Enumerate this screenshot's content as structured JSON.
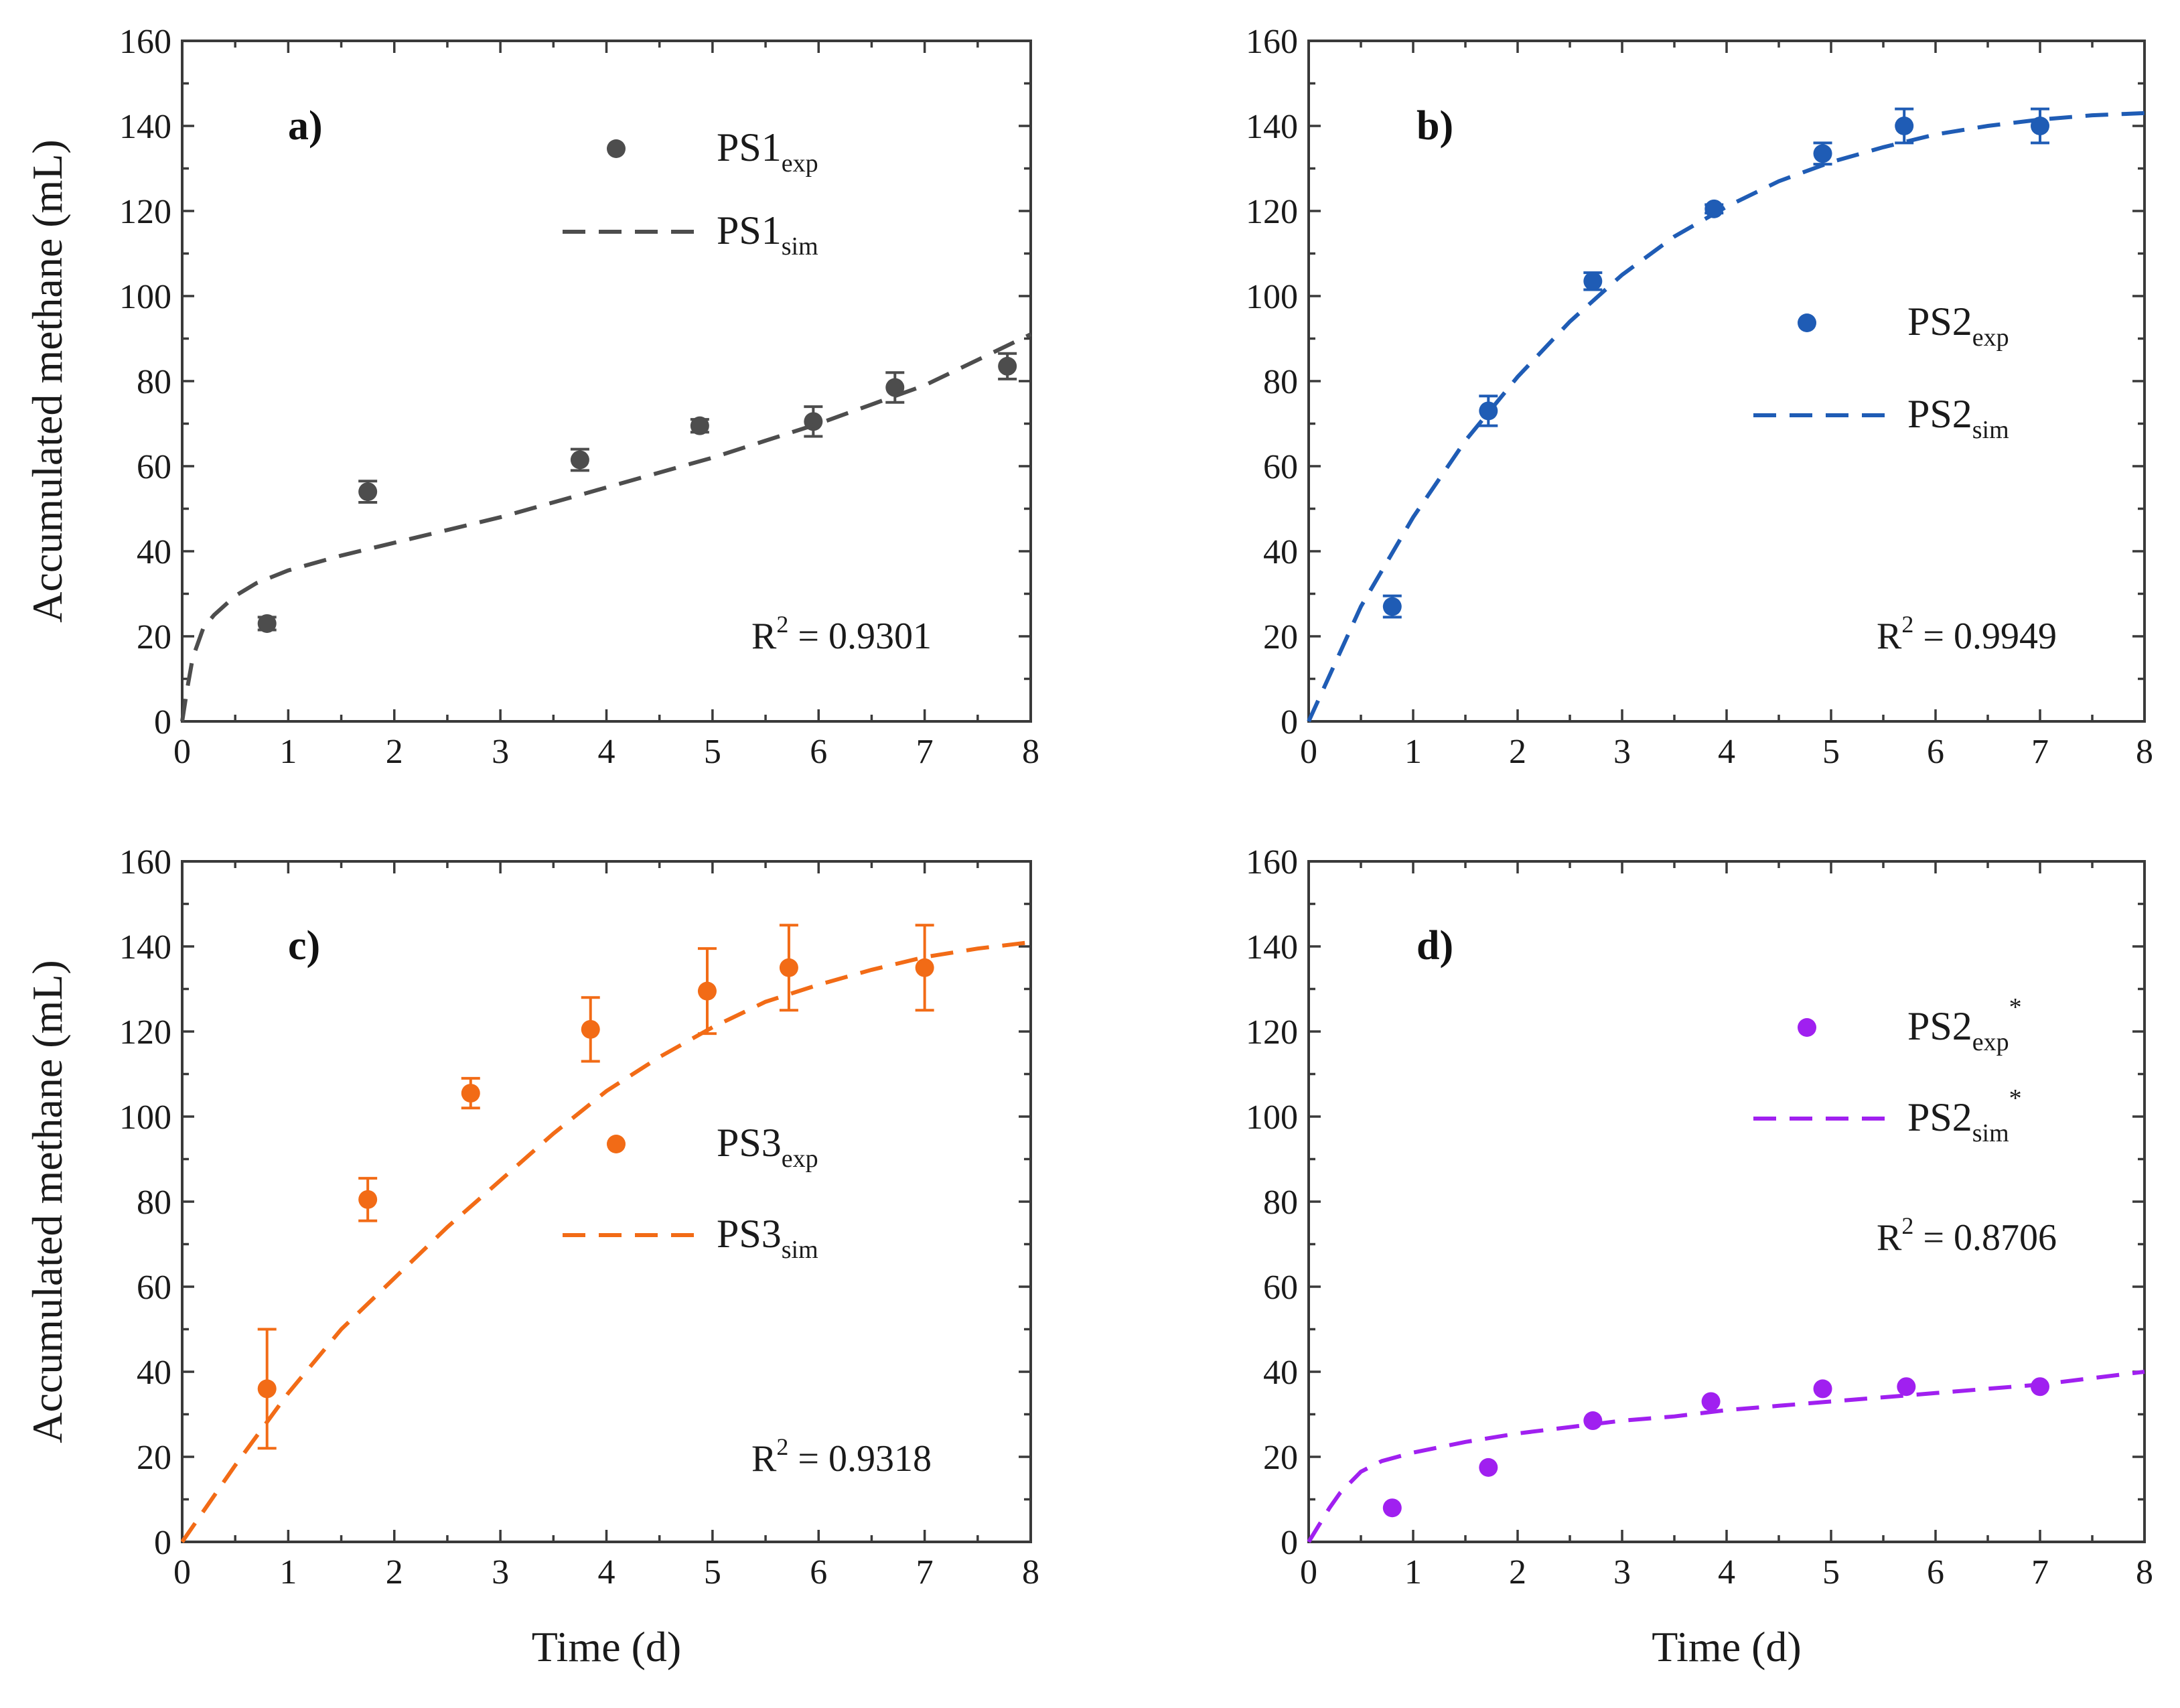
{
  "chart_data": [
    {
      "type": "scatter",
      "panel": "a)",
      "color": "#4d4d4d",
      "xlabel": "",
      "ylabel": "Accumulated methane (mL)",
      "xlim": [
        0,
        8
      ],
      "ylim": [
        0,
        160
      ],
      "xticks": [
        0,
        1,
        2,
        3,
        4,
        5,
        6,
        7,
        8
      ],
      "yticks": [
        0,
        20,
        40,
        60,
        80,
        100,
        120,
        140,
        160
      ],
      "r2_label": "R",
      "r2_sup": "2",
      "r2_value": " = 0.9301",
      "legend": [
        {
          "kind": "marker",
          "base": "PS1",
          "sub": "exp",
          "sup": ""
        },
        {
          "kind": "line",
          "base": "PS1",
          "sub": "sim",
          "sup": ""
        }
      ],
      "series": [
        {
          "name": "PS1exp",
          "kind": "scatter",
          "x": [
            0.8,
            1.75,
            3.75,
            4.88,
            5.95,
            6.72,
            7.78
          ],
          "y": [
            23,
            54,
            61.5,
            69.5,
            70.5,
            78.5,
            83.5
          ],
          "err": [
            1.5,
            2.5,
            2.5,
            1.5,
            3.5,
            3.5,
            3
          ]
        },
        {
          "name": "PS1sim",
          "kind": "line",
          "x": [
            0,
            0.05,
            0.1,
            0.2,
            0.3,
            0.5,
            0.7,
            1,
            1.5,
            2,
            2.5,
            3,
            3.5,
            4,
            4.5,
            5,
            5.5,
            6,
            6.5,
            7,
            7.5,
            8
          ],
          "y": [
            0,
            8,
            15,
            22,
            25,
            29.5,
            32.5,
            35.5,
            39,
            42,
            45,
            48,
            51.5,
            55,
            58.5,
            62,
            66,
            70,
            74.5,
            79,
            85,
            91
          ]
        }
      ]
    },
    {
      "type": "scatter",
      "panel": "b)",
      "color": "#1f5cb5",
      "xlabel": "",
      "ylabel": "",
      "xlim": [
        0,
        8
      ],
      "ylim": [
        0,
        160
      ],
      "xticks": [
        0,
        1,
        2,
        3,
        4,
        5,
        6,
        7,
        8
      ],
      "yticks": [
        0,
        20,
        40,
        60,
        80,
        100,
        120,
        140,
        160
      ],
      "r2_label": "R",
      "r2_sup": "2",
      "r2_value": " = 0.9949",
      "legend": [
        {
          "kind": "marker",
          "base": "PS2",
          "sub": "exp",
          "sup": ""
        },
        {
          "kind": "line",
          "base": "PS2",
          "sub": "sim",
          "sup": ""
        }
      ],
      "series": [
        {
          "name": "PS2exp",
          "kind": "scatter",
          "x": [
            0.8,
            1.72,
            2.72,
            3.88,
            4.92,
            5.7,
            7
          ],
          "y": [
            27,
            73,
            103.5,
            120.5,
            133.5,
            140,
            140
          ],
          "err": [
            2.5,
            3.5,
            2,
            1,
            2.5,
            4,
            4
          ]
        },
        {
          "name": "PS2sim",
          "kind": "line",
          "x": [
            0,
            0.5,
            1,
            1.5,
            2,
            2.5,
            3,
            3.5,
            4,
            4.5,
            5,
            5.5,
            6,
            6.5,
            7,
            7.5,
            8
          ],
          "y": [
            0,
            27,
            48,
            66,
            81,
            94,
            105,
            114,
            121,
            127,
            131.5,
            135,
            138,
            140,
            141.5,
            142.5,
            143
          ]
        }
      ]
    },
    {
      "type": "scatter",
      "panel": "c)",
      "color": "#f26b16",
      "xlabel": "Time (d)",
      "ylabel": "Accumulated methane (mL)",
      "xlim": [
        0,
        8
      ],
      "ylim": [
        0,
        160
      ],
      "xticks": [
        0,
        1,
        2,
        3,
        4,
        5,
        6,
        7,
        8
      ],
      "yticks": [
        0,
        20,
        40,
        60,
        80,
        100,
        120,
        140,
        160
      ],
      "r2_label": "R",
      "r2_sup": "2",
      "r2_value": " = 0.9318",
      "legend": [
        {
          "kind": "marker",
          "base": "PS3",
          "sub": "exp",
          "sup": ""
        },
        {
          "kind": "line",
          "base": "PS3",
          "sub": "sim",
          "sup": ""
        }
      ],
      "series": [
        {
          "name": "PS3exp",
          "kind": "scatter",
          "x": [
            0.8,
            1.75,
            2.72,
            3.85,
            4.95,
            5.72,
            7
          ],
          "y": [
            36,
            80.5,
            105.5,
            120.5,
            129.5,
            135,
            135
          ],
          "err": [
            14,
            5,
            3.5,
            7.5,
            10,
            10,
            10
          ]
        },
        {
          "name": "PS3sim",
          "kind": "line",
          "x": [
            0,
            0.5,
            1,
            1.5,
            2,
            2.5,
            3,
            3.5,
            4,
            4.5,
            5,
            5.5,
            6,
            6.5,
            7,
            7.5,
            8
          ],
          "y": [
            0,
            18,
            35,
            50,
            62,
            74,
            85,
            96,
            106,
            114,
            121,
            127,
            131,
            134.5,
            137.5,
            139.5,
            141
          ]
        }
      ]
    },
    {
      "type": "scatter",
      "panel": "d)",
      "color": "#a020f0",
      "xlabel": "Time (d)",
      "ylabel": "",
      "xlim": [
        0,
        8
      ],
      "ylim": [
        0,
        160
      ],
      "xticks": [
        0,
        1,
        2,
        3,
        4,
        5,
        6,
        7,
        8
      ],
      "yticks": [
        0,
        20,
        40,
        60,
        80,
        100,
        120,
        140,
        160
      ],
      "r2_label": "R",
      "r2_sup": "2",
      "r2_value": " = 0.8706",
      "legend": [
        {
          "kind": "marker",
          "base": "PS2",
          "sub": "exp",
          "sup": "*"
        },
        {
          "kind": "line",
          "base": "PS2",
          "sub": "sim",
          "sup": "*"
        }
      ],
      "series": [
        {
          "name": "PS2exp*",
          "kind": "scatter",
          "x": [
            0.8,
            1.72,
            2.72,
            3.85,
            4.92,
            5.72,
            7
          ],
          "y": [
            8,
            17.5,
            28.5,
            33,
            36,
            36.5,
            36.5
          ],
          "err": [
            0,
            0,
            0,
            0,
            0,
            0,
            0
          ]
        },
        {
          "name": "PS2sim*",
          "kind": "line",
          "x": [
            0,
            0.1,
            0.2,
            0.3,
            0.5,
            0.7,
            1,
            1.5,
            2,
            2.5,
            3,
            3.5,
            4,
            4.5,
            5,
            5.5,
            6,
            6.5,
            7,
            7.5,
            8
          ],
          "y": [
            0,
            4,
            8,
            11.5,
            16.5,
            19,
            21,
            23.5,
            25.5,
            27,
            28.5,
            29.5,
            31,
            32,
            33,
            34,
            35,
            36,
            37,
            38.5,
            40
          ]
        }
      ]
    }
  ]
}
